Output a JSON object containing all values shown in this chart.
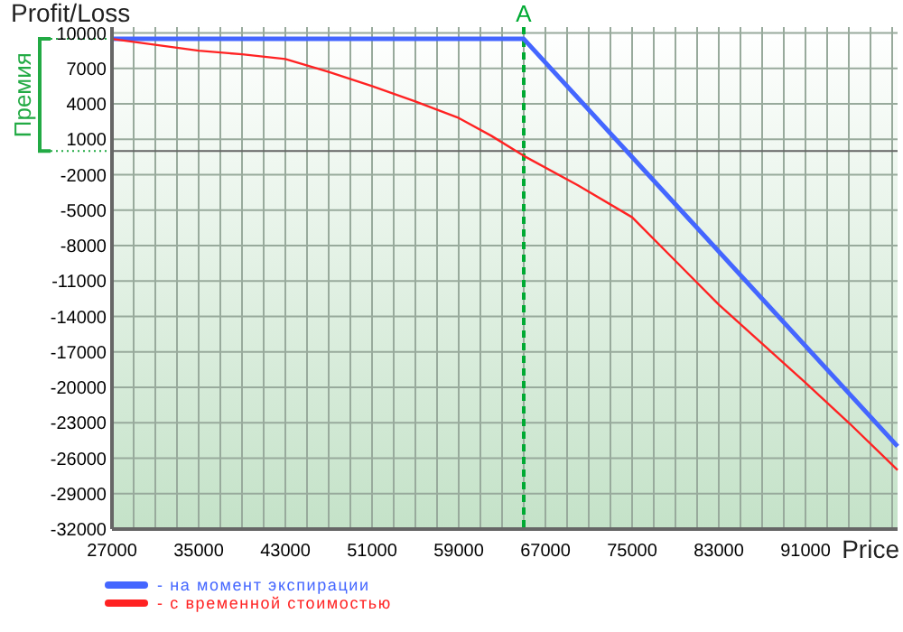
{
  "chart_data": {
    "type": "line",
    "ylabel": "Profit/Loss",
    "xlabel": "Price",
    "x": [
      27000,
      31000,
      35000,
      39000,
      43000,
      47000,
      51000,
      55000,
      59000,
      62000,
      65000,
      70000,
      75000,
      79000,
      83000,
      87000,
      91000,
      95000,
      99500
    ],
    "series": [
      {
        "name": "- на момент экспирации",
        "color": "#4466ff",
        "x": [
          27000,
          65000,
          99500
        ],
        "values": [
          9500,
          9500,
          -25000
        ]
      },
      {
        "name": "- с временной стоимостью",
        "color": "#ff2222",
        "values": [
          9500,
          9000,
          8500,
          8200,
          7800,
          6700,
          5500,
          4200,
          2800,
          1300,
          -400,
          -2900,
          -5600,
          -9300,
          -13000,
          -16300,
          -19600,
          -23000,
          -27000
        ]
      }
    ],
    "xlim": [
      27000,
      99500
    ],
    "xticks": [
      27000,
      {
        "value": 29000,
        "label": null
      },
      {
        "value": 31000,
        "label": null
      },
      {
        "value": 33000,
        "label": null
      },
      35000,
      {
        "value": 37000,
        "label": null
      },
      {
        "value": 39000,
        "label": null
      },
      {
        "value": 41000,
        "label": null
      },
      43000,
      {
        "value": 45000,
        "label": null
      },
      {
        "value": 47000,
        "label": null
      },
      {
        "value": 49000,
        "label": null
      },
      51000,
      {
        "value": 53000,
        "label": null
      },
      {
        "value": 55000,
        "label": null
      },
      {
        "value": 57000,
        "label": null
      },
      59000,
      {
        "value": 61000,
        "label": null
      },
      {
        "value": 63000,
        "label": null
      },
      {
        "value": 65000,
        "label": null
      },
      67000,
      {
        "value": 69000,
        "label": null
      },
      {
        "value": 71000,
        "label": null
      },
      {
        "value": 73000,
        "label": null
      },
      75000,
      {
        "value": 77000,
        "label": null
      },
      {
        "value": 79000,
        "label": null
      },
      {
        "value": 81000,
        "label": null
      },
      83000,
      {
        "value": 85000,
        "label": null
      },
      {
        "value": 87000,
        "label": null
      },
      {
        "value": 89000,
        "label": null
      },
      91000,
      {
        "value": 93000,
        "label": null
      },
      {
        "value": 95000,
        "label": null
      },
      {
        "value": 97000,
        "label": null
      },
      {
        "value": 99000,
        "label": null
      }
    ],
    "ylim": [
      -32000,
      10500
    ],
    "yticks": [
      10000,
      7000,
      4000,
      1000,
      -2000,
      -5000,
      -8000,
      -11000,
      -14000,
      -17000,
      -20000,
      -23000,
      -26000,
      -29000,
      -32000
    ],
    "grid": true,
    "legend": "bottom left",
    "marker": "none",
    "line_style": "solid",
    "ref_lines": [
      {
        "axis": "x",
        "value": 65000,
        "label": "A",
        "color": "#00aa33",
        "line_style": "dashed"
      },
      {
        "axis": "y",
        "value": 0,
        "color": "#666666",
        "line_style": "solid"
      }
    ],
    "annotations": [
      "Премия"
    ]
  }
}
